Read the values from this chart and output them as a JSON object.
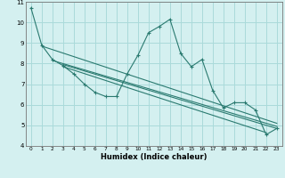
{
  "bg_color": "#d4f0f0",
  "line_color": "#2a7a70",
  "grid_color": "#aadada",
  "xlabel": "Humidex (Indice chaleur)",
  "xlim": [
    -0.5,
    23.5
  ],
  "ylim": [
    4,
    11
  ],
  "yticks": [
    4,
    5,
    6,
    7,
    8,
    9,
    10,
    11
  ],
  "xticks": [
    0,
    1,
    2,
    3,
    4,
    5,
    6,
    7,
    8,
    9,
    10,
    11,
    12,
    13,
    14,
    15,
    16,
    17,
    18,
    19,
    20,
    21,
    22,
    23
  ],
  "data_line": {
    "x": [
      0,
      1,
      2,
      3,
      4,
      5,
      6,
      7,
      8,
      9,
      10,
      11,
      12,
      13,
      14,
      15,
      16,
      17,
      18,
      19,
      20,
      21,
      22,
      23
    ],
    "y": [
      10.7,
      8.9,
      8.2,
      7.9,
      7.5,
      7.0,
      6.6,
      6.4,
      6.4,
      7.5,
      8.4,
      9.5,
      9.8,
      10.15,
      8.5,
      7.85,
      8.2,
      6.7,
      5.85,
      6.1,
      6.1,
      5.75,
      4.55,
      4.85
    ]
  },
  "trend_lines": [
    {
      "x": [
        1,
        23
      ],
      "y": [
        8.85,
        5.1
      ]
    },
    {
      "x": [
        2,
        23
      ],
      "y": [
        8.15,
        4.95
      ]
    },
    {
      "x": [
        3,
        23
      ],
      "y": [
        7.95,
        4.85
      ]
    },
    {
      "x": [
        3,
        22
      ],
      "y": [
        7.85,
        4.65
      ]
    }
  ]
}
